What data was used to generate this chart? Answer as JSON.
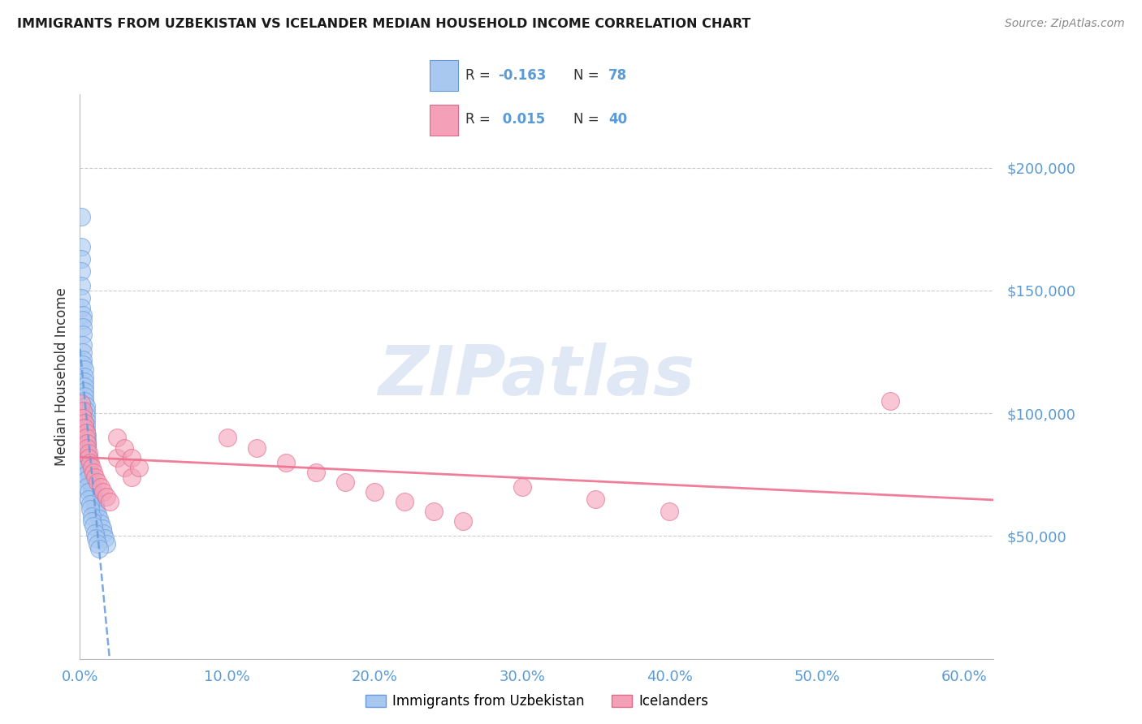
{
  "title": "IMMIGRANTS FROM UZBEKISTAN VS ICELANDER MEDIAN HOUSEHOLD INCOME CORRELATION CHART",
  "source": "Source: ZipAtlas.com",
  "ylabel": "Median Household Income",
  "xlim": [
    0.0,
    0.62
  ],
  "ylim": [
    0,
    230000
  ],
  "yticks": [
    0,
    50000,
    100000,
    150000,
    200000
  ],
  "ytick_labels": [
    "",
    "$50,000",
    "$100,000",
    "$150,000",
    "$200,000"
  ],
  "xticks": [
    0.0,
    0.1,
    0.2,
    0.3,
    0.4,
    0.5,
    0.6
  ],
  "xtick_labels": [
    "0.0%",
    "10.0%",
    "20.0%",
    "30.0%",
    "40.0%",
    "50.0%",
    "60.0%"
  ],
  "blue_fill": "#A8C8F0",
  "blue_edge": "#6699DD",
  "pink_fill": "#F4A0B8",
  "pink_edge": "#E06888",
  "blue_line": "#6699DD",
  "pink_line": "#EE7090",
  "tick_color": "#5B9BD5",
  "legend_blue_label": "Immigrants from Uzbekistan",
  "legend_pink_label": "Icelanders",
  "R_blue": "-0.163",
  "N_blue": "78",
  "R_pink": "0.015",
  "N_pink": "40",
  "watermark": "ZIPatlas",
  "bg": "#FFFFFF",
  "grid_color": "#CCCCCC",
  "blue_x": [
    0.001,
    0.001,
    0.001,
    0.001,
    0.001,
    0.001,
    0.001,
    0.002,
    0.002,
    0.002,
    0.002,
    0.002,
    0.002,
    0.002,
    0.002,
    0.003,
    0.003,
    0.003,
    0.003,
    0.003,
    0.003,
    0.003,
    0.004,
    0.004,
    0.004,
    0.004,
    0.004,
    0.004,
    0.005,
    0.005,
    0.005,
    0.005,
    0.005,
    0.006,
    0.006,
    0.006,
    0.006,
    0.007,
    0.007,
    0.007,
    0.007,
    0.008,
    0.008,
    0.008,
    0.009,
    0.009,
    0.01,
    0.01,
    0.011,
    0.012,
    0.013,
    0.014,
    0.015,
    0.016,
    0.017,
    0.018,
    0.001,
    0.001,
    0.002,
    0.002,
    0.002,
    0.003,
    0.003,
    0.004,
    0.004,
    0.005,
    0.005,
    0.006,
    0.006,
    0.007,
    0.007,
    0.008,
    0.008,
    0.009,
    0.01,
    0.011,
    0.012,
    0.013
  ],
  "blue_y": [
    180000,
    168000,
    163000,
    158000,
    152000,
    147000,
    143000,
    140000,
    138000,
    135000,
    132000,
    128000,
    125000,
    122000,
    120000,
    118000,
    115000,
    113000,
    111000,
    109000,
    107000,
    105000,
    103000,
    101000,
    99000,
    97000,
    95000,
    93000,
    91000,
    89000,
    88000,
    86000,
    84000,
    82000,
    80000,
    79000,
    77000,
    76000,
    75000,
    74000,
    72000,
    71000,
    70000,
    68000,
    67000,
    65000,
    64000,
    62000,
    61000,
    59000,
    57000,
    55000,
    53000,
    51000,
    49000,
    47000,
    100000,
    96000,
    93000,
    90000,
    87000,
    84000,
    81000,
    78000,
    75000,
    73000,
    70000,
    68000,
    65000,
    63000,
    61000,
    58000,
    56000,
    54000,
    51000,
    49000,
    47000,
    45000
  ],
  "pink_x": [
    0.001,
    0.002,
    0.002,
    0.003,
    0.003,
    0.004,
    0.004,
    0.005,
    0.005,
    0.006,
    0.006,
    0.007,
    0.008,
    0.009,
    0.01,
    0.012,
    0.014,
    0.016,
    0.018,
    0.02,
    0.025,
    0.03,
    0.035,
    0.025,
    0.03,
    0.035,
    0.04,
    0.1,
    0.12,
    0.14,
    0.16,
    0.18,
    0.2,
    0.22,
    0.24,
    0.26,
    0.3,
    0.35,
    0.4,
    0.55
  ],
  "pink_y": [
    104000,
    101000,
    98000,
    96000,
    94000,
    92000,
    90000,
    88000,
    86000,
    84000,
    82000,
    80000,
    78000,
    76000,
    74000,
    72000,
    70000,
    68000,
    66000,
    64000,
    82000,
    78000,
    74000,
    90000,
    86000,
    82000,
    78000,
    90000,
    86000,
    80000,
    76000,
    72000,
    68000,
    64000,
    60000,
    56000,
    70000,
    65000,
    60000,
    105000
  ]
}
